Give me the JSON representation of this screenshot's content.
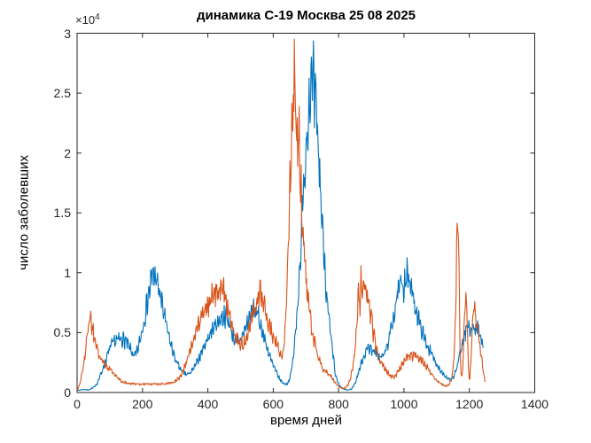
{
  "figure": {
    "background": "#ffffff",
    "axis_color": "#262626",
    "tick_label_color": "#262626",
    "text_color": "#000000"
  },
  "chart_data": {
    "type": "line",
    "title": "динамика С-19 Москва 25 08 2025",
    "xlabel": "время дней",
    "ylabel": "число заболевших",
    "y_exponent_prefix": "×10",
    "y_exponent_power": "4",
    "xlim": [
      0,
      1400
    ],
    "ylim": [
      0,
      30000
    ],
    "x_ticks": [
      0,
      200,
      400,
      600,
      800,
      1000,
      1200,
      1400
    ],
    "y_ticks": [
      0,
      0.5,
      1,
      1.5,
      2,
      2.5,
      3
    ],
    "y_tick_multiplier": 10000,
    "grid": false,
    "box": true,
    "tick_direction": "in",
    "noise_texture": {
      "seed": 7,
      "step_days": 1.5,
      "weekly_period": 7,
      "weekly_amp": 0.07,
      "random_amp": 0.1,
      "floor": 40
    },
    "series": [
      {
        "name": "series-1-blue",
        "color": "#0072BD",
        "points": [
          [
            0,
            150
          ],
          [
            18,
            260
          ],
          [
            35,
            220
          ],
          [
            50,
            400
          ],
          [
            62,
            800
          ],
          [
            75,
            1700
          ],
          [
            88,
            2700
          ],
          [
            100,
            3700
          ],
          [
            112,
            4200
          ],
          [
            125,
            4400
          ],
          [
            138,
            4500
          ],
          [
            150,
            4250
          ],
          [
            163,
            3600
          ],
          [
            175,
            2950
          ],
          [
            186,
            3600
          ],
          [
            196,
            4800
          ],
          [
            206,
            6200
          ],
          [
            216,
            7800
          ],
          [
            226,
            9300
          ],
          [
            234,
            10000
          ],
          [
            242,
            9400
          ],
          [
            252,
            8400
          ],
          [
            263,
            7000
          ],
          [
            275,
            5300
          ],
          [
            288,
            3900
          ],
          [
            300,
            2800
          ],
          [
            312,
            2100
          ],
          [
            325,
            1650
          ],
          [
            338,
            1500
          ],
          [
            352,
            1800
          ],
          [
            365,
            2400
          ],
          [
            378,
            3200
          ],
          [
            392,
            4100
          ],
          [
            405,
            4800
          ],
          [
            418,
            5400
          ],
          [
            432,
            5900
          ],
          [
            444,
            6300
          ],
          [
            455,
            6400
          ],
          [
            466,
            5700
          ],
          [
            476,
            4800
          ],
          [
            486,
            4200
          ],
          [
            496,
            4200
          ],
          [
            507,
            4800
          ],
          [
            518,
            5600
          ],
          [
            530,
            6400
          ],
          [
            542,
            6900
          ],
          [
            552,
            6500
          ],
          [
            563,
            5500
          ],
          [
            575,
            4300
          ],
          [
            587,
            3200
          ],
          [
            599,
            2300
          ],
          [
            611,
            1600
          ],
          [
            620,
            1100
          ],
          [
            628,
            850
          ],
          [
            636,
            700
          ],
          [
            644,
            750
          ],
          [
            652,
            1300
          ],
          [
            660,
            2600
          ],
          [
            668,
            4800
          ],
          [
            676,
            8000
          ],
          [
            684,
            12000
          ],
          [
            692,
            16500
          ],
          [
            700,
            20500
          ],
          [
            708,
            23800
          ],
          [
            715,
            26000
          ],
          [
            722,
            25400
          ],
          [
            728,
            24200
          ],
          [
            734,
            22000
          ],
          [
            741,
            18800
          ],
          [
            748,
            15200
          ],
          [
            755,
            11800
          ],
          [
            762,
            8800
          ],
          [
            770,
            6200
          ],
          [
            778,
            4100
          ],
          [
            785,
            2700
          ],
          [
            790,
            1500
          ],
          [
            798,
            800
          ],
          [
            806,
            450
          ],
          [
            816,
            280
          ],
          [
            828,
            200
          ],
          [
            840,
            300
          ],
          [
            851,
            800
          ],
          [
            861,
            1700
          ],
          [
            871,
            2600
          ],
          [
            881,
            3300
          ],
          [
            891,
            3800
          ],
          [
            901,
            3650
          ],
          [
            911,
            3350
          ],
          [
            921,
            3100
          ],
          [
            931,
            2950
          ],
          [
            941,
            3250
          ],
          [
            951,
            4100
          ],
          [
            961,
            5400
          ],
          [
            971,
            6800
          ],
          [
            981,
            8100
          ],
          [
            991,
            9100
          ],
          [
            999,
            8900
          ],
          [
            1007,
            9900
          ],
          [
            1014,
            9500
          ],
          [
            1023,
            8500
          ],
          [
            1033,
            7400
          ],
          [
            1043,
            6300
          ],
          [
            1053,
            5300
          ],
          [
            1063,
            4500
          ],
          [
            1073,
            3850
          ],
          [
            1083,
            3250
          ],
          [
            1093,
            2750
          ],
          [
            1103,
            2250
          ],
          [
            1113,
            1850
          ],
          [
            1123,
            1450
          ],
          [
            1133,
            1150
          ],
          [
            1143,
            1050
          ],
          [
            1153,
            1350
          ],
          [
            1162,
            2100
          ],
          [
            1171,
            3200
          ],
          [
            1180,
            4300
          ],
          [
            1188,
            5100
          ],
          [
            1196,
            5600
          ],
          [
            1203,
            5200
          ],
          [
            1210,
            5700
          ],
          [
            1217,
            5100
          ],
          [
            1224,
            5600
          ],
          [
            1230,
            5000
          ],
          [
            1236,
            4400
          ],
          [
            1242,
            3900
          ]
        ]
      },
      {
        "name": "series-2-orange",
        "color": "#D95319",
        "points": [
          [
            0,
            120
          ],
          [
            8,
            700
          ],
          [
            16,
            1700
          ],
          [
            24,
            3100
          ],
          [
            31,
            4700
          ],
          [
            38,
            6400
          ],
          [
            44,
            5800
          ],
          [
            51,
            4800
          ],
          [
            59,
            3900
          ],
          [
            67,
            3200
          ],
          [
            76,
            2700
          ],
          [
            86,
            2350
          ],
          [
            96,
            2050
          ],
          [
            106,
            1750
          ],
          [
            116,
            1450
          ],
          [
            126,
            1150
          ],
          [
            136,
            950
          ],
          [
            148,
            820
          ],
          [
            165,
            750
          ],
          [
            185,
            710
          ],
          [
            205,
            700
          ],
          [
            225,
            695
          ],
          [
            245,
            700
          ],
          [
            265,
            720
          ],
          [
            283,
            780
          ],
          [
            298,
            900
          ],
          [
            312,
            1200
          ],
          [
            324,
            1800
          ],
          [
            336,
            2700
          ],
          [
            348,
            3800
          ],
          [
            360,
            4900
          ],
          [
            372,
            5800
          ],
          [
            384,
            6500
          ],
          [
            396,
            7100
          ],
          [
            408,
            7700
          ],
          [
            419,
            8300
          ],
          [
            429,
            8800
          ],
          [
            437,
            8400
          ],
          [
            445,
            8800
          ],
          [
            453,
            8200
          ],
          [
            461,
            7100
          ],
          [
            470,
            6000
          ],
          [
            479,
            5100
          ],
          [
            488,
            4500
          ],
          [
            497,
            4100
          ],
          [
            506,
            4000
          ],
          [
            516,
            4400
          ],
          [
            526,
            5200
          ],
          [
            536,
            6200
          ],
          [
            546,
            7200
          ],
          [
            554,
            7900
          ],
          [
            561,
            8300
          ],
          [
            568,
            7800
          ],
          [
            576,
            6900
          ],
          [
            585,
            6000
          ],
          [
            594,
            5200
          ],
          [
            603,
            4500
          ],
          [
            610,
            4000
          ],
          [
            616,
            3600
          ],
          [
            624,
            3000
          ],
          [
            630,
            3400
          ],
          [
            636,
            5200
          ],
          [
            642,
            9000
          ],
          [
            649,
            15000
          ],
          [
            655,
            20000
          ],
          [
            660,
            24200
          ],
          [
            664,
            26800
          ],
          [
            668,
            25200
          ],
          [
            672,
            21500
          ],
          [
            676,
            22800
          ],
          [
            680,
            20800
          ],
          [
            685,
            16800
          ],
          [
            690,
            13400
          ],
          [
            696,
            10800
          ],
          [
            703,
            8600
          ],
          [
            710,
            6900
          ],
          [
            718,
            5200
          ],
          [
            726,
            4200
          ],
          [
            734,
            3300
          ],
          [
            742,
            2600
          ],
          [
            750,
            2100
          ],
          [
            758,
            1800
          ],
          [
            766,
            1600
          ],
          [
            774,
            1400
          ],
          [
            782,
            1100
          ],
          [
            790,
            800
          ],
          [
            798,
            550
          ],
          [
            806,
            400
          ],
          [
            814,
            330
          ],
          [
            822,
            420
          ],
          [
            830,
            700
          ],
          [
            838,
            1300
          ],
          [
            846,
            2600
          ],
          [
            852,
            4300
          ],
          [
            857,
            6600
          ],
          [
            861,
            8800
          ],
          [
            865,
            7000
          ],
          [
            869,
            9600
          ],
          [
            873,
            7400
          ],
          [
            877,
            9900
          ],
          [
            881,
            7800
          ],
          [
            885,
            9300
          ],
          [
            889,
            7000
          ],
          [
            893,
            8300
          ],
          [
            897,
            6000
          ],
          [
            901,
            7200
          ],
          [
            905,
            4800
          ],
          [
            909,
            5400
          ],
          [
            913,
            3900
          ],
          [
            918,
            3300
          ],
          [
            924,
            2850
          ],
          [
            931,
            2450
          ],
          [
            939,
            2100
          ],
          [
            947,
            1800
          ],
          [
            955,
            1500
          ],
          [
            963,
            1320
          ],
          [
            971,
            1380
          ],
          [
            979,
            1600
          ],
          [
            987,
            1950
          ],
          [
            995,
            2350
          ],
          [
            1003,
            2700
          ],
          [
            1011,
            3000
          ],
          [
            1019,
            3200
          ],
          [
            1027,
            3080
          ],
          [
            1035,
            3250
          ],
          [
            1043,
            3000
          ],
          [
            1051,
            2780
          ],
          [
            1059,
            2500
          ],
          [
            1067,
            2200
          ],
          [
            1075,
            1900
          ],
          [
            1083,
            1600
          ],
          [
            1091,
            1300
          ],
          [
            1099,
            1050
          ],
          [
            1107,
            850
          ],
          [
            1115,
            700
          ],
          [
            1123,
            590
          ],
          [
            1131,
            530
          ],
          [
            1139,
            680
          ],
          [
            1147,
            1300
          ],
          [
            1153,
            2800
          ],
          [
            1158,
            6500
          ],
          [
            1162,
            12500
          ],
          [
            1165,
            16700
          ],
          [
            1168,
            10500
          ],
          [
            1171,
            4300
          ],
          [
            1174,
            1700
          ],
          [
            1177,
            1150
          ],
          [
            1181,
            2700
          ],
          [
            1185,
            6200
          ],
          [
            1189,
            8500
          ],
          [
            1192,
            7700
          ],
          [
            1195,
            3900
          ],
          [
            1198,
            1500
          ],
          [
            1201,
            1100
          ],
          [
            1205,
            2600
          ],
          [
            1209,
            5300
          ],
          [
            1213,
            7300
          ],
          [
            1217,
            6900
          ],
          [
            1221,
            6100
          ],
          [
            1225,
            5300
          ],
          [
            1229,
            4700
          ],
          [
            1233,
            3900
          ],
          [
            1237,
            2900
          ],
          [
            1241,
            2000
          ],
          [
            1245,
            1300
          ],
          [
            1249,
            900
          ]
        ]
      }
    ]
  }
}
